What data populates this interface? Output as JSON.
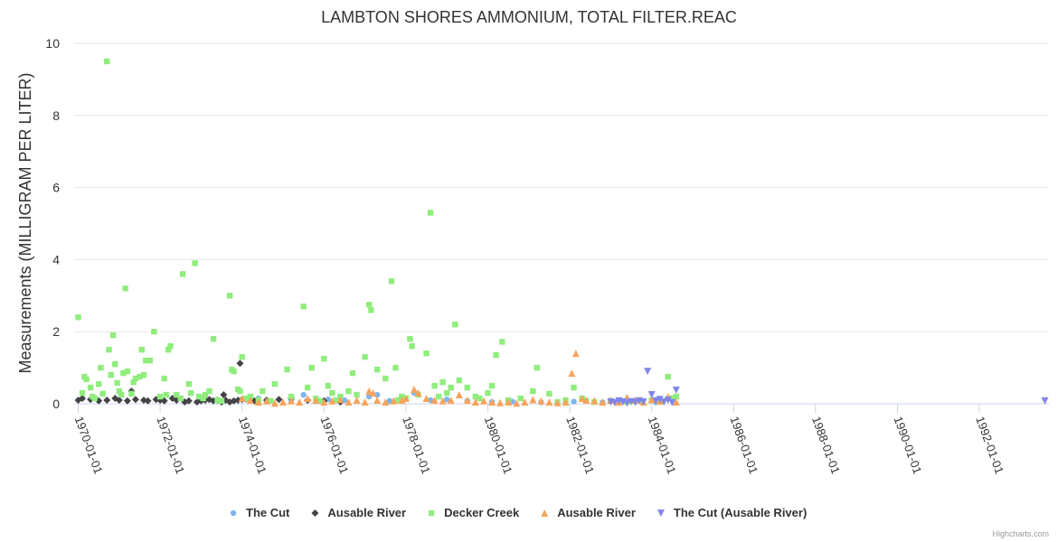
{
  "chart_data": {
    "type": "scatter",
    "title": "LAMBTON SHORES AMMONIUM, TOTAL FILTER.REAC",
    "xlabel": "",
    "ylabel": "Measurements (MILLIGRAM PER LITER)",
    "ylim": [
      0,
      10
    ],
    "yticks": [
      "0",
      "2",
      "4",
      "6",
      "8",
      "10"
    ],
    "xlim": [
      1969.9,
      1993.7
    ],
    "xticks": [
      {
        "label": "1970-01-01",
        "year": 1970
      },
      {
        "label": "1972-01-01",
        "year": 1972
      },
      {
        "label": "1974-01-01",
        "year": 1974
      },
      {
        "label": "1976-01-01",
        "year": 1976
      },
      {
        "label": "1978-01-01",
        "year": 1978
      },
      {
        "label": "1980-01-01",
        "year": 1980
      },
      {
        "label": "1982-01-01",
        "year": 1982
      },
      {
        "label": "1984-01-01",
        "year": 1984
      },
      {
        "label": "1986-01-01",
        "year": 1986
      },
      {
        "label": "1988-01-01",
        "year": 1988
      },
      {
        "label": "1990-01-01",
        "year": 1990
      },
      {
        "label": "1992-01-01",
        "year": 1992
      }
    ],
    "grid": true,
    "legend_position": "bottom-center",
    "credits": "Highcharts.com",
    "series": [
      {
        "name": "The Cut",
        "marker": "circle",
        "color": "#7cb5ec",
        "points": [
          [
            1974.1,
            0.12
          ],
          [
            1974.4,
            0.15
          ],
          [
            1975.2,
            0.1
          ],
          [
            1975.5,
            0.25
          ],
          [
            1976.1,
            0.12
          ],
          [
            1976.5,
            0.1
          ],
          [
            1977.1,
            0.2
          ],
          [
            1977.3,
            0.25
          ],
          [
            1977.6,
            0.08
          ],
          [
            1978.0,
            0.15
          ],
          [
            1978.2,
            0.3
          ],
          [
            1978.6,
            0.1
          ],
          [
            1979.0,
            0.12
          ],
          [
            1979.5,
            0.08
          ],
          [
            1980.1,
            0.05
          ],
          [
            1980.6,
            0.06
          ],
          [
            1981.3,
            0.04
          ],
          [
            1982.1,
            0.06
          ],
          [
            1982.8,
            0.04
          ],
          [
            1983.2,
            0.05
          ],
          [
            1983.6,
            0.06
          ],
          [
            1984.1,
            0.04
          ]
        ]
      },
      {
        "name": "Ausable River",
        "marker": "diamond",
        "color": "#434348",
        "points": [
          [
            1970.0,
            0.1
          ],
          [
            1970.1,
            0.15
          ],
          [
            1970.3,
            0.12
          ],
          [
            1970.5,
            0.08
          ],
          [
            1970.7,
            0.1
          ],
          [
            1970.9,
            0.15
          ],
          [
            1971.0,
            0.1
          ],
          [
            1971.2,
            0.08
          ],
          [
            1971.3,
            0.35
          ],
          [
            1971.4,
            0.12
          ],
          [
            1971.6,
            0.1
          ],
          [
            1971.7,
            0.08
          ],
          [
            1971.9,
            0.12
          ],
          [
            1972.0,
            0.1
          ],
          [
            1972.1,
            0.08
          ],
          [
            1972.3,
            0.15
          ],
          [
            1972.4,
            0.1
          ],
          [
            1972.6,
            0.05
          ],
          [
            1972.7,
            0.08
          ],
          [
            1972.9,
            0.05
          ],
          [
            1973.0,
            0.08
          ],
          [
            1973.1,
            0.1
          ],
          [
            1973.2,
            0.12
          ],
          [
            1973.3,
            0.08
          ],
          [
            1973.4,
            0.1
          ],
          [
            1973.5,
            0.05
          ],
          [
            1973.55,
            0.25
          ],
          [
            1973.6,
            0.1
          ],
          [
            1973.7,
            0.05
          ],
          [
            1973.8,
            0.08
          ],
          [
            1973.9,
            0.1
          ],
          [
            1973.95,
            1.12
          ],
          [
            1974.0,
            0.12
          ],
          [
            1974.3,
            0.08
          ],
          [
            1974.6,
            0.1
          ],
          [
            1974.9,
            0.12
          ],
          [
            1975.2,
            0.15
          ],
          [
            1975.6,
            0.1
          ],
          [
            1976.0,
            0.08
          ],
          [
            1976.4,
            0.05
          ]
        ]
      },
      {
        "name": "Decker Creek",
        "marker": "square",
        "color": "#90ed7d",
        "points": [
          [
            1970.0,
            2.4
          ],
          [
            1970.1,
            0.3
          ],
          [
            1970.15,
            0.75
          ],
          [
            1970.2,
            0.68
          ],
          [
            1970.3,
            0.45
          ],
          [
            1970.35,
            0.2
          ],
          [
            1970.4,
            0.15
          ],
          [
            1970.5,
            0.55
          ],
          [
            1970.55,
            1.0
          ],
          [
            1970.6,
            0.28
          ],
          [
            1970.7,
            9.5
          ],
          [
            1970.75,
            1.5
          ],
          [
            1970.8,
            0.8
          ],
          [
            1970.85,
            1.9
          ],
          [
            1970.9,
            1.1
          ],
          [
            1970.95,
            0.58
          ],
          [
            1971.0,
            0.35
          ],
          [
            1971.05,
            0.25
          ],
          [
            1971.1,
            0.85
          ],
          [
            1971.15,
            3.2
          ],
          [
            1971.2,
            0.9
          ],
          [
            1971.3,
            0.28
          ],
          [
            1971.35,
            0.6
          ],
          [
            1971.4,
            0.7
          ],
          [
            1971.5,
            0.75
          ],
          [
            1971.55,
            1.5
          ],
          [
            1971.6,
            0.8
          ],
          [
            1971.65,
            1.2
          ],
          [
            1971.75,
            1.2
          ],
          [
            1971.85,
            2.0
          ],
          [
            1972.0,
            0.2
          ],
          [
            1972.1,
            0.7
          ],
          [
            1972.15,
            0.25
          ],
          [
            1972.2,
            1.5
          ],
          [
            1972.25,
            1.6
          ],
          [
            1972.4,
            0.25
          ],
          [
            1972.5,
            0.15
          ],
          [
            1972.55,
            3.6
          ],
          [
            1972.7,
            0.55
          ],
          [
            1972.75,
            0.3
          ],
          [
            1972.85,
            3.9
          ],
          [
            1972.95,
            0.2
          ],
          [
            1973.05,
            0.15
          ],
          [
            1973.1,
            0.25
          ],
          [
            1973.2,
            0.35
          ],
          [
            1973.3,
            1.8
          ],
          [
            1973.4,
            0.1
          ],
          [
            1973.5,
            0.08
          ],
          [
            1973.7,
            3.0
          ],
          [
            1973.75,
            0.95
          ],
          [
            1973.8,
            0.9
          ],
          [
            1973.9,
            0.4
          ],
          [
            1973.95,
            0.35
          ],
          [
            1974.0,
            1.3
          ],
          [
            1974.1,
            0.15
          ],
          [
            1974.2,
            0.2
          ],
          [
            1974.4,
            0.1
          ],
          [
            1974.5,
            0.35
          ],
          [
            1974.7,
            0.08
          ],
          [
            1974.8,
            0.55
          ],
          [
            1975.1,
            0.95
          ],
          [
            1975.2,
            0.2
          ],
          [
            1975.5,
            2.7
          ],
          [
            1975.6,
            0.45
          ],
          [
            1975.7,
            1.0
          ],
          [
            1975.8,
            0.15
          ],
          [
            1975.9,
            0.08
          ],
          [
            1976.0,
            1.25
          ],
          [
            1976.1,
            0.5
          ],
          [
            1976.2,
            0.3
          ],
          [
            1976.3,
            0.1
          ],
          [
            1976.4,
            0.2
          ],
          [
            1976.6,
            0.35
          ],
          [
            1976.7,
            0.85
          ],
          [
            1976.8,
            0.25
          ],
          [
            1977.0,
            1.3
          ],
          [
            1977.1,
            2.75
          ],
          [
            1977.15,
            2.6
          ],
          [
            1977.3,
            0.95
          ],
          [
            1977.5,
            0.7
          ],
          [
            1977.65,
            3.4
          ],
          [
            1977.75,
            1.0
          ],
          [
            1977.8,
            0.1
          ],
          [
            1977.9,
            0.2
          ],
          [
            1978.0,
            0.15
          ],
          [
            1978.1,
            1.8
          ],
          [
            1978.15,
            1.6
          ],
          [
            1978.3,
            0.25
          ],
          [
            1978.5,
            1.4
          ],
          [
            1978.6,
            5.3
          ],
          [
            1978.7,
            0.5
          ],
          [
            1978.8,
            0.2
          ],
          [
            1978.9,
            0.6
          ],
          [
            1979.0,
            0.3
          ],
          [
            1979.1,
            0.45
          ],
          [
            1979.2,
            2.2
          ],
          [
            1979.3,
            0.65
          ],
          [
            1979.5,
            0.45
          ],
          [
            1979.7,
            0.2
          ],
          [
            1979.8,
            0.15
          ],
          [
            1980.0,
            0.3
          ],
          [
            1980.1,
            0.5
          ],
          [
            1980.2,
            1.35
          ],
          [
            1980.35,
            1.72
          ],
          [
            1980.5,
            0.1
          ],
          [
            1980.8,
            0.15
          ],
          [
            1981.1,
            0.35
          ],
          [
            1981.2,
            1.0
          ],
          [
            1981.5,
            0.28
          ],
          [
            1981.7,
            0.05
          ],
          [
            1981.9,
            0.1
          ],
          [
            1982.1,
            0.45
          ],
          [
            1982.3,
            0.15
          ],
          [
            1982.4,
            0.08
          ],
          [
            1982.6,
            0.05
          ],
          [
            1983.0,
            0.08
          ],
          [
            1983.4,
            0.05
          ],
          [
            1983.7,
            0.08
          ],
          [
            1984.0,
            0.1
          ],
          [
            1984.2,
            0.05
          ],
          [
            1984.4,
            0.75
          ],
          [
            1984.5,
            0.15
          ],
          [
            1984.6,
            0.2
          ]
        ]
      },
      {
        "name": "Ausable River",
        "marker": "triangle",
        "color": "#f7a35c",
        "points": [
          [
            1974.0,
            0.15
          ],
          [
            1974.2,
            0.1
          ],
          [
            1974.4,
            0.05
          ],
          [
            1974.6,
            0.08
          ],
          [
            1974.8,
            0.02
          ],
          [
            1975.0,
            0.05
          ],
          [
            1975.2,
            0.08
          ],
          [
            1975.4,
            0.05
          ],
          [
            1975.6,
            0.15
          ],
          [
            1975.8,
            0.1
          ],
          [
            1976.0,
            0.05
          ],
          [
            1976.2,
            0.08
          ],
          [
            1976.4,
            0.12
          ],
          [
            1976.6,
            0.05
          ],
          [
            1976.8,
            0.1
          ],
          [
            1977.0,
            0.05
          ],
          [
            1977.1,
            0.35
          ],
          [
            1977.2,
            0.3
          ],
          [
            1977.3,
            0.1
          ],
          [
            1977.5,
            0.05
          ],
          [
            1977.7,
            0.08
          ],
          [
            1977.9,
            0.1
          ],
          [
            1978.0,
            0.15
          ],
          [
            1978.2,
            0.4
          ],
          [
            1978.3,
            0.3
          ],
          [
            1978.5,
            0.15
          ],
          [
            1978.7,
            0.1
          ],
          [
            1978.9,
            0.08
          ],
          [
            1979.1,
            0.1
          ],
          [
            1979.3,
            0.25
          ],
          [
            1979.5,
            0.1
          ],
          [
            1979.7,
            0.05
          ],
          [
            1979.9,
            0.08
          ],
          [
            1980.1,
            0.05
          ],
          [
            1980.3,
            0.03
          ],
          [
            1980.5,
            0.05
          ],
          [
            1980.7,
            0.02
          ],
          [
            1980.9,
            0.05
          ],
          [
            1981.1,
            0.12
          ],
          [
            1981.3,
            0.08
          ],
          [
            1981.5,
            0.05
          ],
          [
            1981.7,
            0.03
          ],
          [
            1981.9,
            0.05
          ],
          [
            1982.05,
            0.85
          ],
          [
            1982.15,
            1.4
          ],
          [
            1982.3,
            0.15
          ],
          [
            1982.4,
            0.1
          ],
          [
            1982.6,
            0.08
          ],
          [
            1982.8,
            0.05
          ],
          [
            1983.0,
            0.1
          ],
          [
            1983.2,
            0.05
          ],
          [
            1983.4,
            0.18
          ],
          [
            1983.6,
            0.1
          ],
          [
            1983.8,
            0.05
          ],
          [
            1984.0,
            0.12
          ],
          [
            1984.2,
            0.08
          ],
          [
            1984.4,
            0.2
          ],
          [
            1984.6,
            0.05
          ]
        ]
      },
      {
        "name": "The Cut (Ausable River)",
        "marker": "triangle-down",
        "color": "#8085e9",
        "points": [
          [
            1983.0,
            0.05
          ],
          [
            1983.1,
            0.03
          ],
          [
            1983.2,
            0.08
          ],
          [
            1983.3,
            0.05
          ],
          [
            1983.4,
            0.02
          ],
          [
            1983.5,
            0.06
          ],
          [
            1983.6,
            0.04
          ],
          [
            1983.7,
            0.08
          ],
          [
            1983.8,
            0.05
          ],
          [
            1983.9,
            0.9
          ],
          [
            1984.0,
            0.25
          ],
          [
            1984.1,
            0.08
          ],
          [
            1984.2,
            0.12
          ],
          [
            1984.3,
            0.05
          ],
          [
            1984.4,
            0.1
          ],
          [
            1984.5,
            0.03
          ],
          [
            1984.6,
            0.38
          ],
          [
            1993.6,
            0.08
          ]
        ]
      }
    ]
  }
}
